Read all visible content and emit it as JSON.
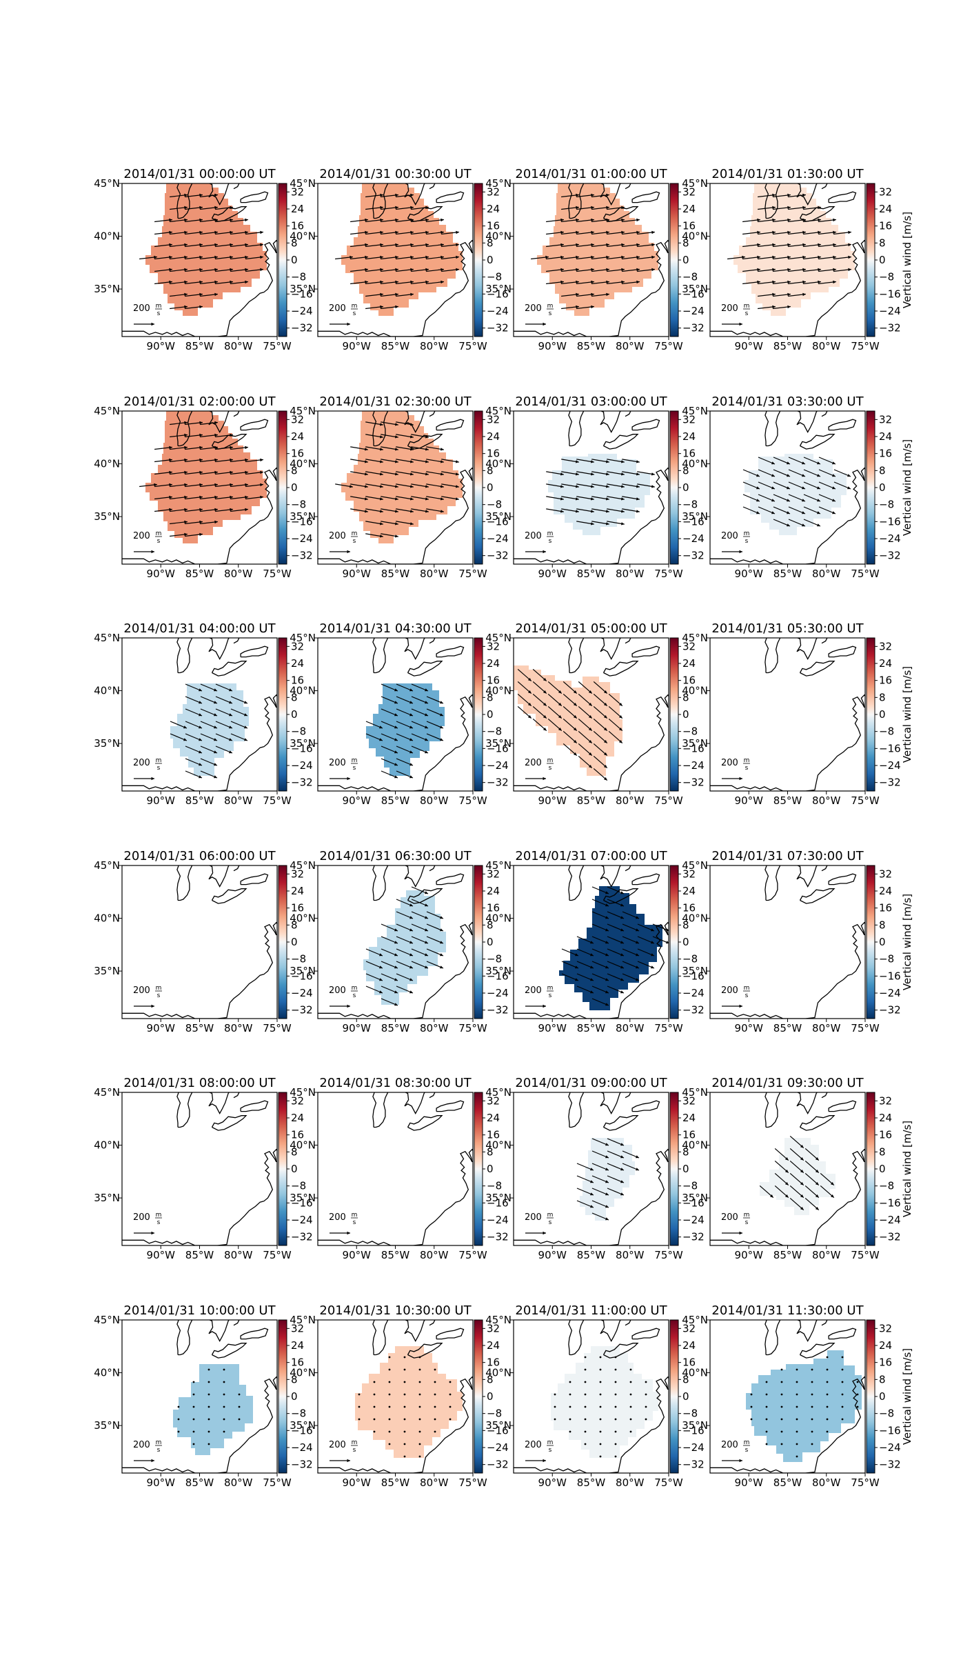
{
  "chart_data": {
    "type": "map-grid",
    "figure": {
      "rows": 6,
      "cols": 4,
      "colorbar_label": "Vertical wind [m/s]",
      "colorbar_ticks": [
        32,
        24,
        16,
        8,
        0,
        -8,
        -16,
        -24,
        -32
      ],
      "colorbar_range": [
        -36,
        36
      ],
      "colormap": "RdBu_r",
      "lon_ticks": [
        "90°W",
        "85°W",
        "80°W",
        "75°W"
      ],
      "lat_ticks": [
        "45°N",
        "40°N",
        "35°N"
      ],
      "lon_range": [
        -95,
        -75
      ],
      "lat_range": [
        30.5,
        45
      ],
      "reference_vector_label": "200",
      "reference_vector_units": "m/s",
      "reference_vector_units_num": "m",
      "reference_vector_units_den": "s"
    },
    "panels": [
      {
        "title": "2014/01/31 00:00:00 UT",
        "value": 14,
        "shape": "A",
        "arrow": "e"
      },
      {
        "title": "2014/01/31 00:30:00 UT",
        "value": 12,
        "shape": "A",
        "arrow": "e"
      },
      {
        "title": "2014/01/31 01:00:00 UT",
        "value": 10,
        "shape": "A",
        "arrow": "e"
      },
      {
        "title": "2014/01/31 01:30:00 UT",
        "value": 3,
        "shape": "A",
        "arrow": "e"
      },
      {
        "title": "2014/01/31 02:00:00 UT",
        "value": 14,
        "shape": "A",
        "arrow": "e"
      },
      {
        "title": "2014/01/31 02:30:00 UT",
        "value": 11,
        "shape": "A",
        "arrow": "ese"
      },
      {
        "title": "2014/01/31 03:00:00 UT",
        "value": -3,
        "shape": "B",
        "arrow": "ese"
      },
      {
        "title": "2014/01/31 03:30:00 UT",
        "value": -2,
        "shape": "B",
        "arrow": "se"
      },
      {
        "title": "2014/01/31 04:00:00 UT",
        "value": -6,
        "shape": "C",
        "arrow": "se"
      },
      {
        "title": "2014/01/31 04:30:00 UT",
        "value": -16,
        "shape": "C",
        "arrow": "se"
      },
      {
        "title": "2014/01/31 05:00:00 UT",
        "value": 6,
        "shape": "D",
        "arrow": "sse"
      },
      {
        "title": "2014/01/31 05:30:00 UT",
        "value": null,
        "shape": "none",
        "arrow": "none"
      },
      {
        "title": "2014/01/31 06:00:00 UT",
        "value": null,
        "shape": "none",
        "arrow": "none"
      },
      {
        "title": "2014/01/31 06:30:00 UT",
        "value": -7,
        "shape": "E",
        "arrow": "se"
      },
      {
        "title": "2014/01/31 07:00:00 UT",
        "value": -34,
        "shape": "F",
        "arrow": "se"
      },
      {
        "title": "2014/01/31 07:30:00 UT",
        "value": null,
        "shape": "none",
        "arrow": "none"
      },
      {
        "title": "2014/01/31 08:00:00 UT",
        "value": null,
        "shape": "none",
        "arrow": "none"
      },
      {
        "title": "2014/01/31 08:30:00 UT",
        "value": null,
        "shape": "none",
        "arrow": "none"
      },
      {
        "title": "2014/01/31 09:00:00 UT",
        "value": -2,
        "shape": "G",
        "arrow": "se"
      },
      {
        "title": "2014/01/31 09:30:00 UT",
        "value": -1,
        "shape": "H",
        "arrow": "sse"
      },
      {
        "title": "2014/01/31 10:00:00 UT",
        "value": -11,
        "shape": "I",
        "arrow": "dot"
      },
      {
        "title": "2014/01/31 10:30:00 UT",
        "value": 6,
        "shape": "J",
        "arrow": "dot"
      },
      {
        "title": "2014/01/31 11:00:00 UT",
        "value": -1,
        "shape": "J",
        "arrow": "dot"
      },
      {
        "title": "2014/01/31 11:30:00 UT",
        "value": -12,
        "shape": "K",
        "arrow": "dot"
      }
    ]
  }
}
